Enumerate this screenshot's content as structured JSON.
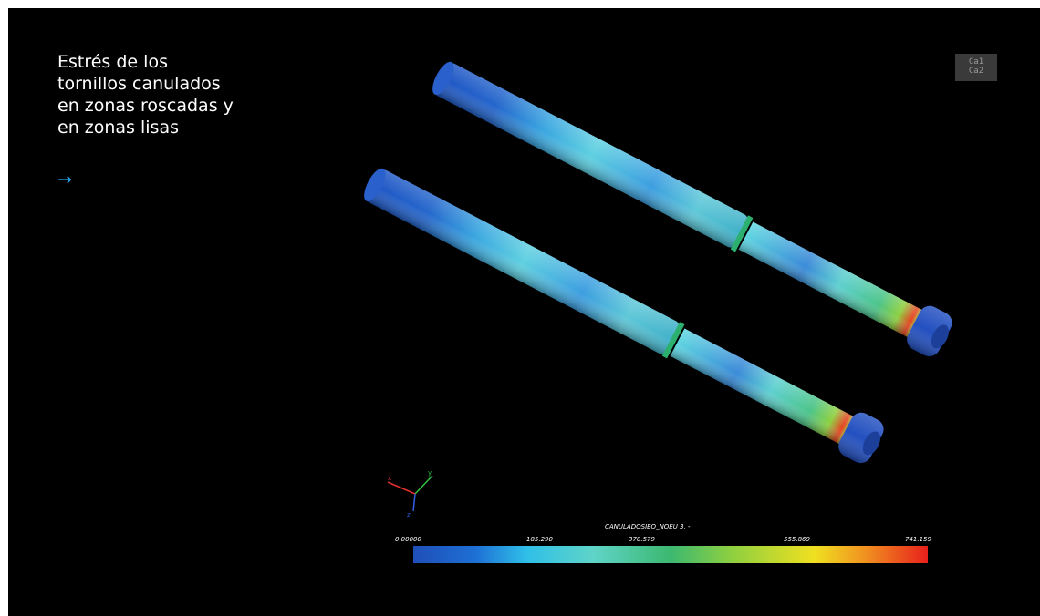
{
  "caption": {
    "title": "Estrés de los\ntornillos canulados\nen zonas roscadas y\nen zonas lisas",
    "link_arrow": "→"
  },
  "logo": {
    "line1": "Ca1",
    "line2": "Ca2"
  },
  "legend": {
    "title": "CANULADOSIEQ_NOEU 3, -",
    "tick_labels": [
      "0.00000",
      "185.290",
      "370.579",
      "555.869",
      "741.159"
    ],
    "min": 0.0,
    "max": 741.159
  },
  "colors": {
    "background": "#000000",
    "accent_link": "#1aa3e8",
    "scale_stops": [
      "#1f4fb8",
      "#1e6fd4",
      "#2fbfe8",
      "#5fd4c8",
      "#3cb870",
      "#8fd040",
      "#f0e020",
      "#f09020",
      "#e8201c"
    ]
  },
  "axes_triad": {
    "x": "x",
    "y": "y",
    "z": "z"
  }
}
